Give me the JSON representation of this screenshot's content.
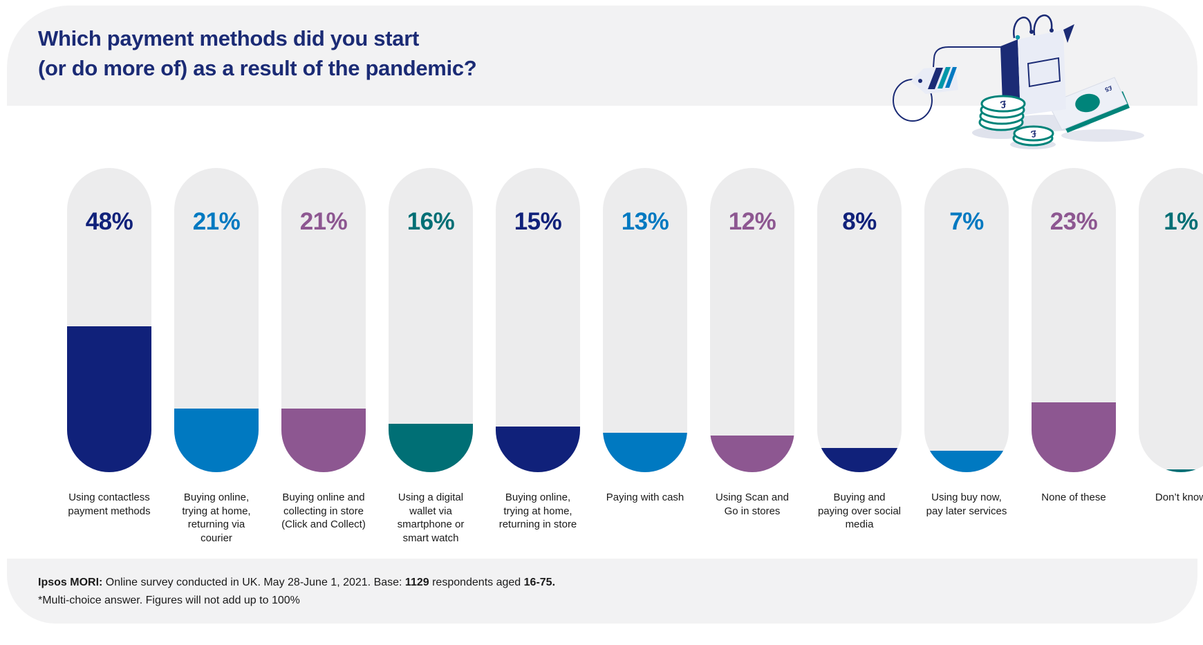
{
  "header": {
    "title_line1": "Which payment methods did you start",
    "title_line2": "(or do more of) as a result of the pandemic?"
  },
  "colors": {
    "navy": "#10217A",
    "blue": "#0079C1",
    "purple": "#8D5791",
    "teal": "#006F75",
    "title_navy": "#1B2B75",
    "pill_track": "#ECECED",
    "band_gray": "#F2F2F3",
    "money_teal": "#00847A",
    "bag_lavender": "#E9ECF6"
  },
  "chart_data": {
    "type": "bar",
    "bar_shape": "pill",
    "orientation": "vertical",
    "title": "Which payment methods did you start (or do more of) as a result of the pandemic?",
    "xlabel": "",
    "ylabel": "",
    "ylim": [
      0,
      100
    ],
    "grid": false,
    "legend": false,
    "unit": "%",
    "categories": [
      "Using contactless payment methods",
      "Buying online, trying at home, returning via courier",
      "Buying online and collecting in store (Click and Collect)",
      "Using a digital wallet via smartphone or smart watch",
      "Buying online, trying at home, returning in store",
      "Paying with cash",
      "Using Scan and Go in stores",
      "Buying and paying over social media",
      "Using buy now, pay later services",
      "None of these",
      "Don’t know"
    ],
    "values": [
      48,
      21,
      21,
      16,
      15,
      13,
      12,
      8,
      7,
      23,
      1
    ],
    "value_labels": [
      "48%",
      "21%",
      "21%",
      "16%",
      "15%",
      "13%",
      "12%",
      "8%",
      "7%",
      "23%",
      "1%"
    ],
    "bar_colors": [
      "navy",
      "blue",
      "purple",
      "teal",
      "navy",
      "blue",
      "purple",
      "navy",
      "blue",
      "purple",
      "teal"
    ]
  },
  "footer": {
    "source_bold": "Ipsos MORI:",
    "source_text": " Online survey conducted in UK. May 28-June 1, 2021. Base: ",
    "base_count": "1129",
    "aged_text": " respondents aged ",
    "age_range": "16-75.",
    "note": "*Multi-choice answer. Figures will not add up to 100%"
  }
}
